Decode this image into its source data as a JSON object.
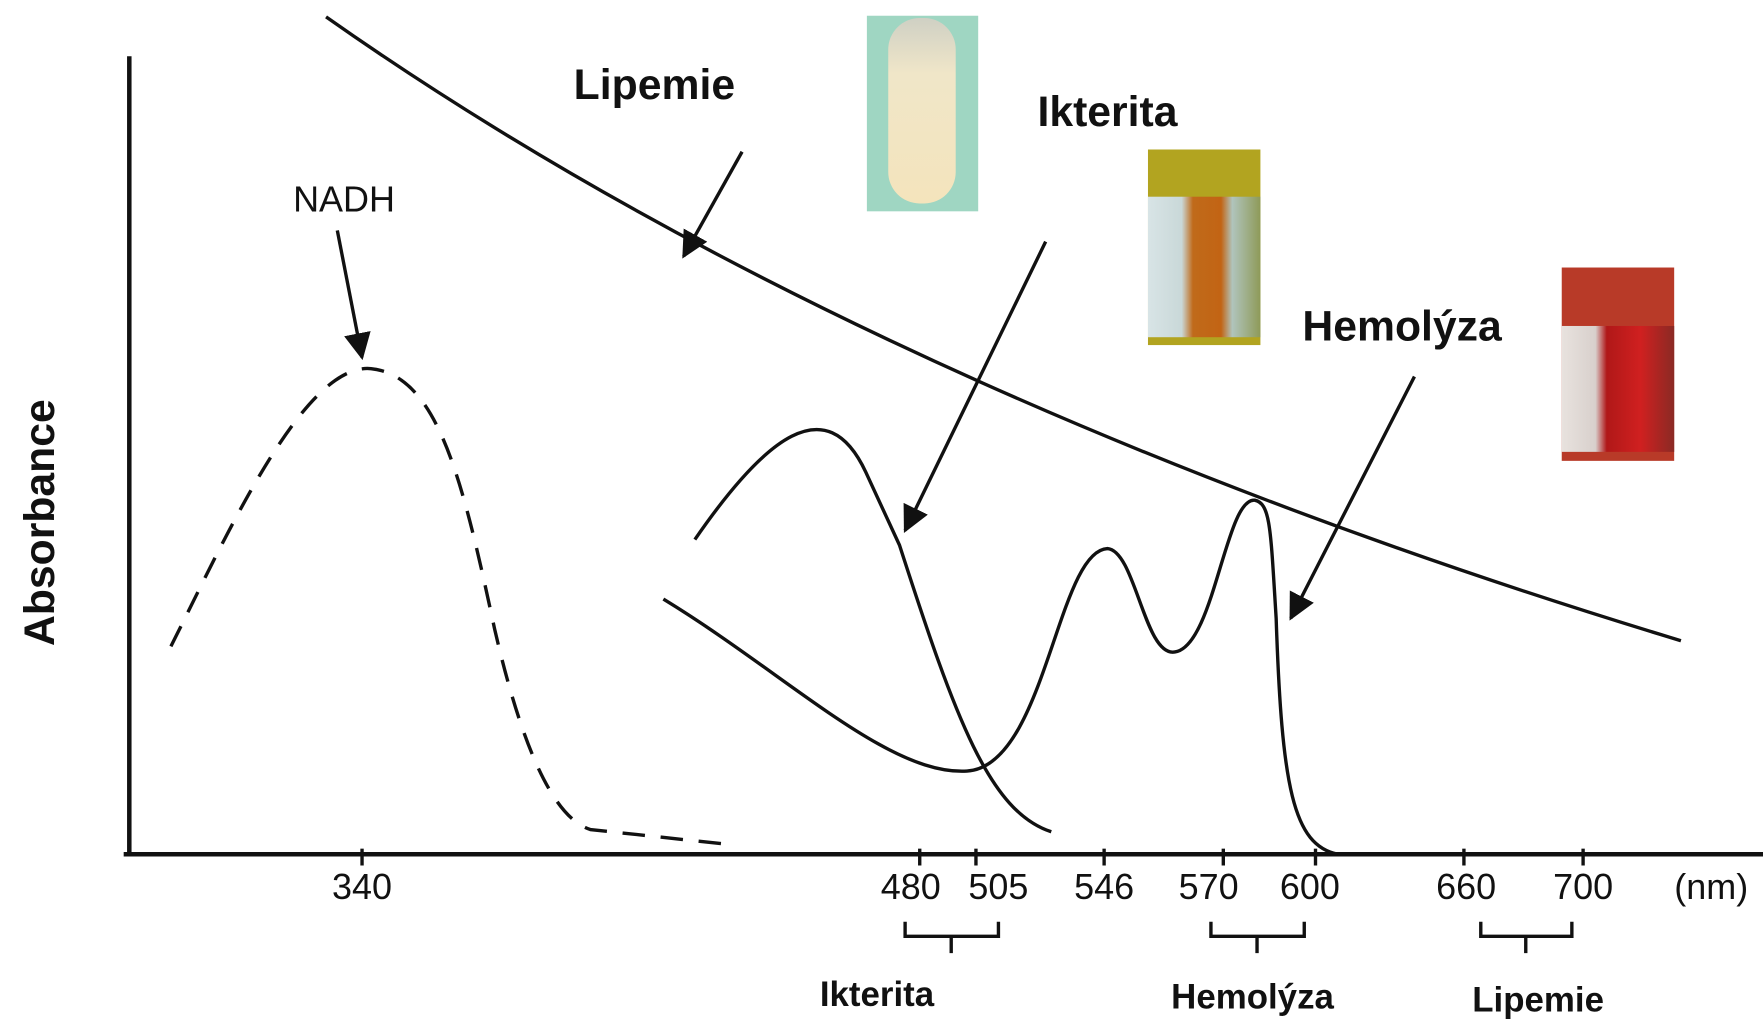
{
  "y_axis_label": "Absorbance",
  "annotations": {
    "lipemie": "Lipemie",
    "ikterita": "Ikterita",
    "hemolyza": "Hemolýza",
    "nadh": "NADH"
  },
  "x_ticks": [
    "340",
    "480",
    "505",
    "546",
    "570",
    "600",
    "660",
    "700"
  ],
  "x_unit": "(nm)",
  "ranges": [
    "Ikterita",
    "Hemolýza",
    "Lipemie"
  ]
}
